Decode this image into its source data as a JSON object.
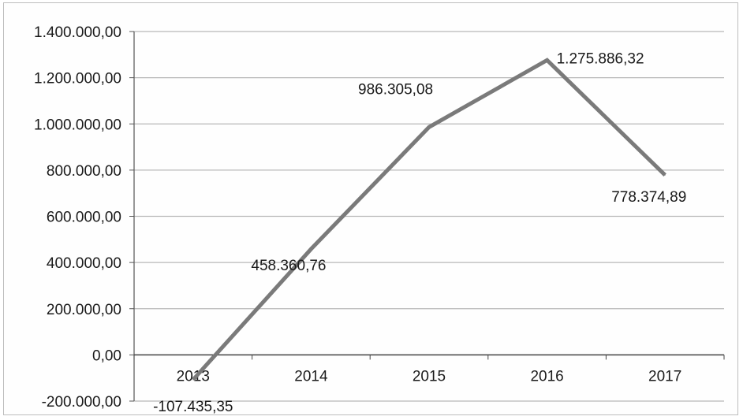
{
  "chart_data": {
    "type": "line",
    "categories": [
      "2013",
      "2014",
      "2015",
      "2016",
      "2017"
    ],
    "values": [
      -107435.35,
      458360.76,
      986305.08,
      1275886.32,
      778374.89
    ],
    "data_labels": [
      "-107.435,35",
      "458.360,76",
      "986.305,08",
      "1.275.886,32",
      "778.374,89"
    ],
    "y_ticks": [
      -200000,
      0,
      200000,
      400000,
      600000,
      800000,
      1000000,
      1200000,
      1400000
    ],
    "y_tick_labels": [
      "-200.000,00",
      "0,00",
      "200.000,00",
      "400.000,00",
      "600.000,00",
      "800.000,00",
      "1.000.000,00",
      "1.200.000,00",
      "1.400.000,00"
    ],
    "ylim": [
      -200000,
      1400000
    ],
    "grid": true,
    "legend": "none",
    "line_color": "#7a7a7a",
    "title": "",
    "xlabel": "",
    "ylabel": ""
  }
}
